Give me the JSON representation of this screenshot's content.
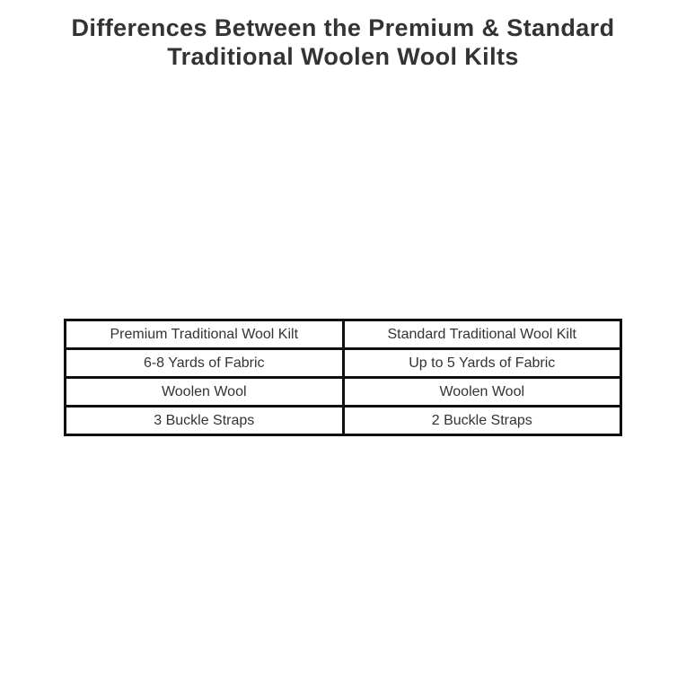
{
  "heading": {
    "text": "Differences Between the Premium & Standard Traditional Woolen Wool Kilts"
  },
  "comparison_table": {
    "rows": [
      [
        "Premium Traditional Wool Kilt",
        "Standard Traditional Wool Kilt"
      ],
      [
        "6-8 Yards of Fabric",
        "Up to 5 Yards of Fabric"
      ],
      [
        "Woolen Wool",
        "Woolen Wool"
      ],
      [
        "3 Buckle Straps",
        "2 Buckle Straps"
      ]
    ]
  },
  "colors": {
    "background": "#ffffff",
    "heading_text": "#333333",
    "cell_text": "#333333",
    "table_border": "#0f0f0f"
  }
}
